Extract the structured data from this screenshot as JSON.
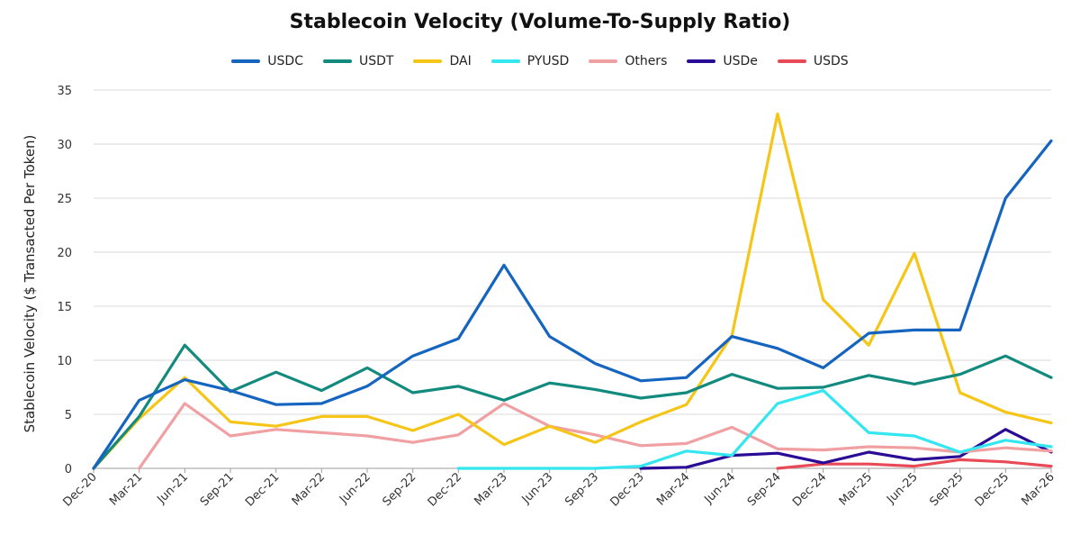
{
  "chart_data": {
    "type": "line",
    "title": "Stablecoin Velocity (Volume-To-Supply Ratio)",
    "ylabel": "Stablecoin Velocity ($ Transacted Per Token)",
    "xlabel": "",
    "ylim": [
      0,
      35
    ],
    "yticks": [
      "0",
      "5",
      "10",
      "15",
      "20",
      "25",
      "30",
      "35"
    ],
    "grid": "horizontal",
    "legend_position": "top",
    "x": [
      "Dec-20",
      "Mar-21",
      "Jun-21",
      "Sep-21",
      "Dec-21",
      "Mar-22",
      "Jun-22",
      "Sep-22",
      "Dec-22",
      "Mar-23",
      "Jun-23",
      "Sep-23",
      "Dec-23",
      "Mar-24",
      "Jun-24",
      "Sep-24",
      "Dec-24",
      "Mar-25",
      "Jun-25",
      "Sep-25",
      "Dec-25",
      "Mar-26"
    ],
    "series": [
      {
        "name": "USDC",
        "color": "#1565C0",
        "values": [
          0,
          6.3,
          8.2,
          7.2,
          5.9,
          6.0,
          7.6,
          10.4,
          12.0,
          18.8,
          12.2,
          9.7,
          8.1,
          8.4,
          12.2,
          11.1,
          9.3,
          12.5,
          12.8,
          12.8,
          25.0,
          30.3
        ]
      },
      {
        "name": "USDT",
        "color": "#138A7E",
        "values": [
          0,
          4.8,
          11.4,
          7.1,
          8.9,
          7.2,
          9.3,
          7.0,
          7.6,
          6.3,
          7.9,
          7.3,
          6.5,
          7.0,
          8.7,
          7.4,
          7.5,
          8.6,
          7.8,
          8.7,
          10.4,
          8.4
        ]
      },
      {
        "name": "DAI",
        "color": "#F5C518",
        "values": [
          0,
          4.6,
          8.4,
          4.3,
          3.9,
          4.8,
          4.8,
          3.5,
          5.0,
          2.2,
          3.9,
          2.4,
          4.3,
          5.9,
          12.3,
          32.8,
          15.6,
          11.4,
          19.9,
          7.0,
          5.2,
          4.2
        ]
      },
      {
        "name": "PYUSD",
        "color": "#33E6F0",
        "values": [
          null,
          null,
          null,
          null,
          null,
          null,
          null,
          null,
          0,
          0,
          0,
          0,
          0.2,
          1.6,
          1.2,
          6.0,
          7.2,
          3.3,
          3.0,
          1.5,
          2.6,
          2.0
        ]
      },
      {
        "name": "Others",
        "color": "#F0A0A2",
        "values": [
          null,
          0,
          6.0,
          3.0,
          3.6,
          3.3,
          3.0,
          2.4,
          3.1,
          6.0,
          3.9,
          3.1,
          2.1,
          2.3,
          3.8,
          1.8,
          1.7,
          2.0,
          1.9,
          1.5,
          1.9,
          1.6
        ]
      },
      {
        "name": "USDe",
        "color": "#2A0B96",
        "values": [
          null,
          null,
          null,
          null,
          null,
          null,
          null,
          null,
          null,
          null,
          null,
          null,
          0,
          0.1,
          1.2,
          1.4,
          0.5,
          1.5,
          0.8,
          1.1,
          3.6,
          1.5
        ]
      },
      {
        "name": "USDS",
        "color": "#E84B57",
        "values": [
          null,
          null,
          null,
          null,
          null,
          null,
          null,
          null,
          null,
          null,
          null,
          null,
          null,
          null,
          null,
          0,
          0.4,
          0.4,
          0.2,
          0.8,
          0.6,
          0.2
        ]
      }
    ]
  }
}
